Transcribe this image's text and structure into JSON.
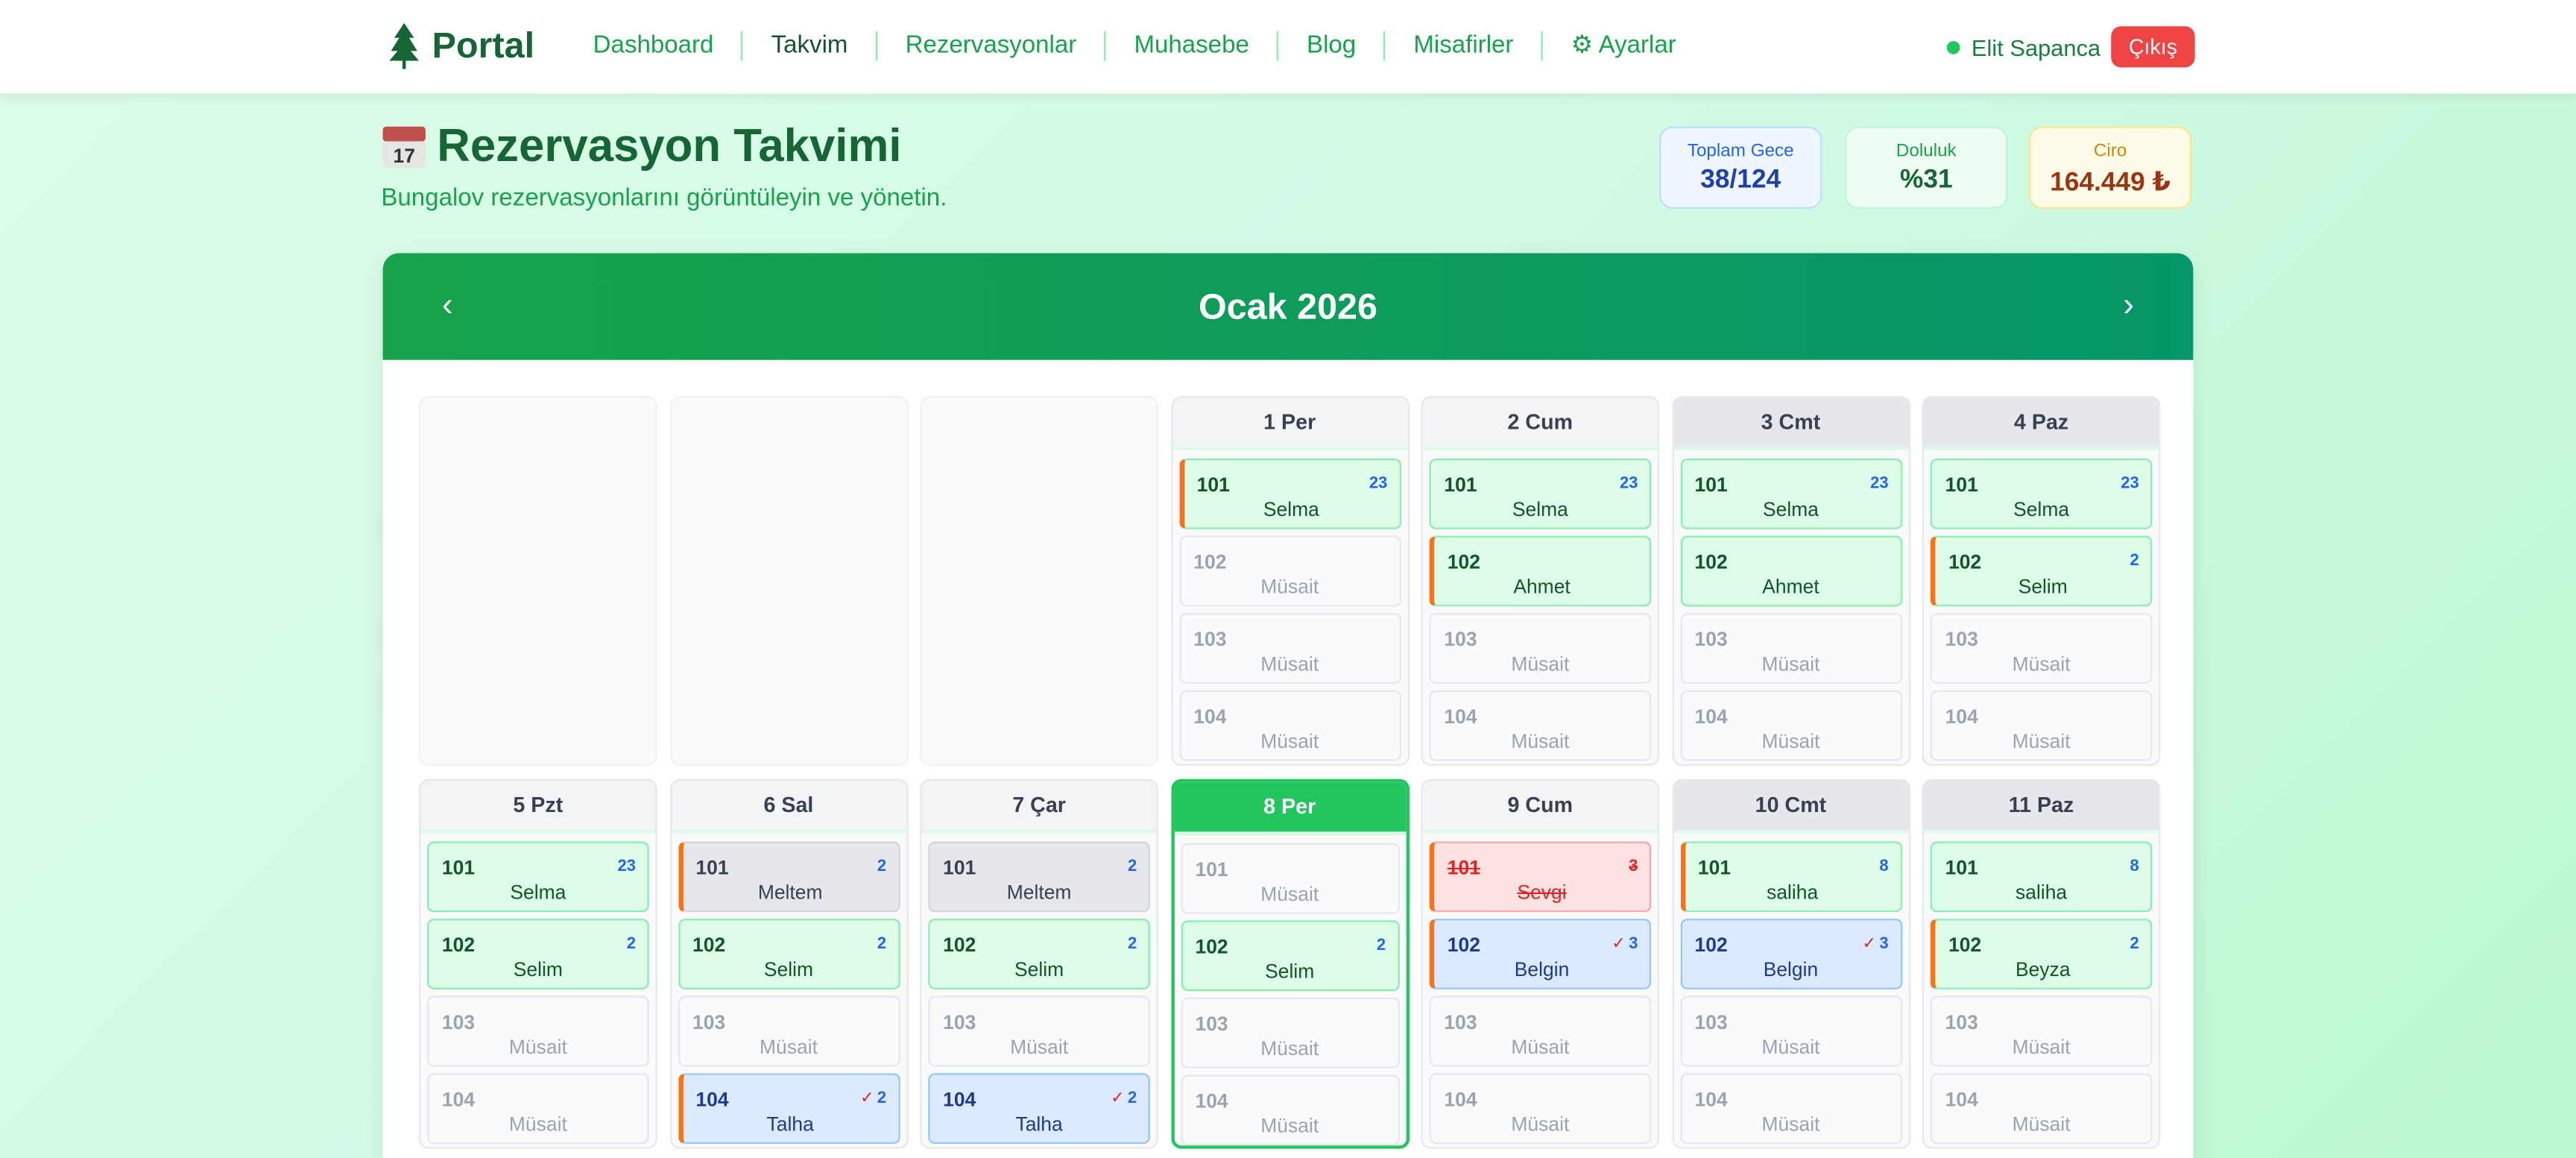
{
  "header": {
    "logo": "Portal",
    "nav": [
      {
        "label": "Dashboard"
      },
      {
        "label": "Takvim",
        "active": true
      },
      {
        "label": "Rezervasyonlar"
      },
      {
        "label": "Muhasebe"
      },
      {
        "label": "Blog"
      },
      {
        "label": "Misafirler"
      },
      {
        "label": "Ayarlar",
        "icon": "gear-icon"
      }
    ],
    "user": "Elit Sapanca",
    "logout": "Çıkış"
  },
  "page": {
    "title": "Rezervasyon Takvimi",
    "title_icon": "calendar-icon",
    "title_icon_text": "17",
    "subtitle": "Bungalov rezervasyonlarını görüntüleyin ve yönetin."
  },
  "stats": [
    {
      "label": "Toplam Gece",
      "value": "38/124",
      "color": "#1e40af"
    },
    {
      "label": "Doluluk",
      "value": "%31",
      "color": "#166534"
    },
    {
      "label": "Ciro",
      "value": "164.449 ₺",
      "color": "#9a3412"
    }
  ],
  "calendar": {
    "month": "Ocak 2026",
    "colors": {
      "booked": "#dcfce7",
      "checked_in": "#dbeafe",
      "cancelled": "#fee2e2",
      "checkin_marker": "#f97316",
      "today": "#22c55e"
    },
    "days": [
      {
        "empty": true
      },
      {
        "empty": true
      },
      {
        "empty": true
      },
      {
        "label": "1 Per",
        "slots": [
          {
            "room": "101",
            "name": "Selma",
            "count": "23",
            "type": "booked",
            "start": true
          },
          {
            "room": "102",
            "name": "Müsait"
          },
          {
            "room": "103",
            "name": "Müsait"
          },
          {
            "room": "104",
            "name": "Müsait"
          }
        ]
      },
      {
        "label": "2 Cum",
        "slots": [
          {
            "room": "101",
            "name": "Selma",
            "count": "23",
            "type": "booked"
          },
          {
            "room": "102",
            "name": "Ahmet",
            "type": "booked",
            "start": true
          },
          {
            "room": "103",
            "name": "Müsait"
          },
          {
            "room": "104",
            "name": "Müsait"
          }
        ]
      },
      {
        "label": "3 Cmt",
        "weekend": true,
        "slots": [
          {
            "room": "101",
            "name": "Selma",
            "count": "23",
            "type": "booked"
          },
          {
            "room": "102",
            "name": "Ahmet",
            "type": "booked"
          },
          {
            "room": "103",
            "name": "Müsait"
          },
          {
            "room": "104",
            "name": "Müsait"
          }
        ]
      },
      {
        "label": "4 Paz",
        "weekend": true,
        "slots": [
          {
            "room": "101",
            "name": "Selma",
            "count": "23",
            "type": "booked"
          },
          {
            "room": "102",
            "name": "Selim",
            "count": "2",
            "type": "booked",
            "start": true
          },
          {
            "room": "103",
            "name": "Müsait"
          },
          {
            "room": "104",
            "name": "Müsait"
          }
        ]
      },
      {
        "label": "5 Pzt",
        "slots": [
          {
            "room": "101",
            "name": "Selma",
            "count": "23",
            "type": "booked"
          },
          {
            "room": "102",
            "name": "Selim",
            "count": "2",
            "type": "booked"
          },
          {
            "room": "103",
            "name": "Müsait"
          },
          {
            "room": "104",
            "name": "Müsait"
          }
        ]
      },
      {
        "label": "6 Sal",
        "slots": [
          {
            "room": "101",
            "name": "Meltem",
            "count": "2",
            "type": "gray",
            "start": true
          },
          {
            "room": "102",
            "name": "Selim",
            "count": "2",
            "type": "booked"
          },
          {
            "room": "103",
            "name": "Müsait"
          },
          {
            "room": "104",
            "name": "Talha",
            "count": "2",
            "type": "blue",
            "check": "✓",
            "start": true
          }
        ]
      },
      {
        "label": "7 Çar",
        "slots": [
          {
            "room": "101",
            "name": "Meltem",
            "count": "2",
            "type": "gray"
          },
          {
            "room": "102",
            "name": "Selim",
            "count": "2",
            "type": "booked"
          },
          {
            "room": "103",
            "name": "Müsait"
          },
          {
            "room": "104",
            "name": "Talha",
            "count": "2",
            "type": "blue",
            "check": "✓"
          }
        ]
      },
      {
        "label": "8 Per",
        "today": true,
        "slots": [
          {
            "room": "101",
            "name": "Müsait"
          },
          {
            "room": "102",
            "name": "Selim",
            "count": "2",
            "type": "booked"
          },
          {
            "room": "103",
            "name": "Müsait"
          },
          {
            "room": "104",
            "name": "Müsait"
          }
        ]
      },
      {
        "label": "9 Cum",
        "slots": [
          {
            "room": "101",
            "name": "Sevgi",
            "count": "3",
            "type": "cancel",
            "start": true
          },
          {
            "room": "102",
            "name": "Belgin",
            "count": "3",
            "type": "blue",
            "check": "✓",
            "start": true
          },
          {
            "room": "103",
            "name": "Müsait"
          },
          {
            "room": "104",
            "name": "Müsait"
          }
        ]
      },
      {
        "label": "10 Cmt",
        "weekend": true,
        "slots": [
          {
            "room": "101",
            "name": "saliha",
            "count": "8",
            "type": "booked",
            "start": true
          },
          {
            "room": "102",
            "name": "Belgin",
            "count": "3",
            "type": "blue",
            "check": "✓"
          },
          {
            "room": "103",
            "name": "Müsait"
          },
          {
            "room": "104",
            "name": "Müsait"
          }
        ]
      },
      {
        "label": "11 Paz",
        "weekend": true,
        "slots": [
          {
            "room": "101",
            "name": "saliha",
            "count": "8",
            "type": "booked"
          },
          {
            "room": "102",
            "name": "Beyza",
            "count": "2",
            "type": "booked",
            "start": true
          },
          {
            "room": "103",
            "name": "Müsait"
          },
          {
            "room": "104",
            "name": "Müsait"
          }
        ]
      }
    ]
  }
}
